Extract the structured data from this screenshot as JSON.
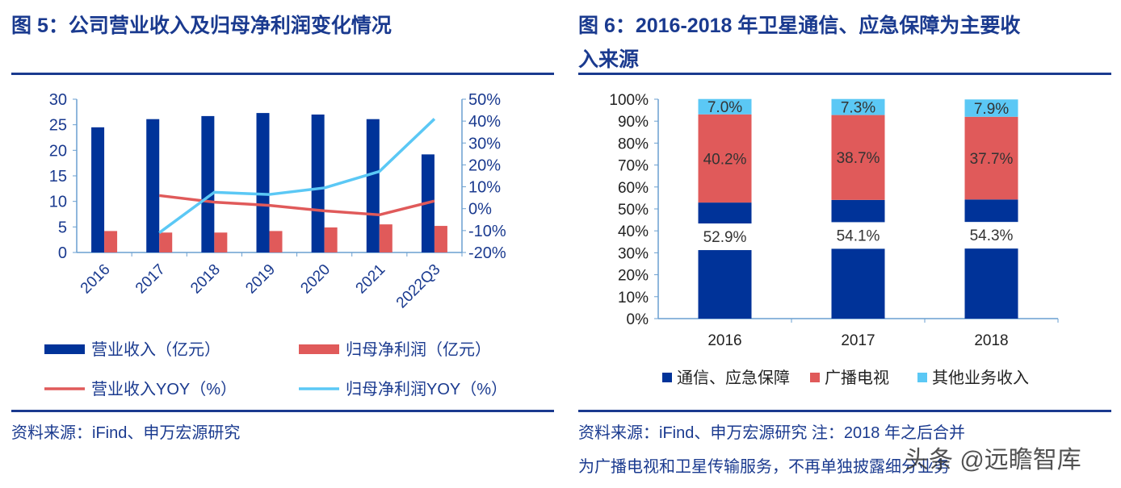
{
  "left": {
    "title": "图 5：公司营业收入及归母净利润变化情况",
    "source": "资料来源：iFind、申万宏源研究"
  },
  "right": {
    "title_line1": "图 6：2016-2018 年卫星通信、应急保障为主要收",
    "title_line2": "入来源",
    "source_line1": "资料来源：iFind、申万宏源研究  注：2018 年之后合并",
    "source_line2": "为广播电视和卫星传输服务，不再单独披露细分业务"
  },
  "watermark": "头条 @远瞻智库",
  "chart_data": [
    {
      "type": "bar+line",
      "categories": [
        "2016",
        "2017",
        "2018",
        "2019",
        "2020",
        "2021",
        "2022Q3"
      ],
      "y_left": {
        "range": [
          0,
          30
        ],
        "ticks": [
          "0",
          "5",
          "10",
          "15",
          "20",
          "25",
          "30"
        ]
      },
      "y_right": {
        "range": [
          -20,
          50
        ],
        "ticks": [
          "-20%",
          "-10%",
          "0%",
          "10%",
          "20%",
          "30%",
          "40%",
          "50%"
        ]
      },
      "series": [
        {
          "name": "营业收入（亿元）",
          "kind": "bar",
          "axis": "left",
          "color": "#003399",
          "values": [
            24.5,
            26.1,
            26.7,
            27.3,
            27.0,
            26.1,
            19.2
          ]
        },
        {
          "name": "归母净利润（亿元）",
          "kind": "bar",
          "axis": "left",
          "color": "#e05a5a",
          "values": [
            4.2,
            3.9,
            3.9,
            4.2,
            4.9,
            5.5,
            5.2
          ]
        },
        {
          "name": "营业收入YOY（%）",
          "kind": "line",
          "axis": "right",
          "color": "#e05a5a",
          "values": [
            null,
            6,
            3,
            1.5,
            -1,
            -2.8,
            3.5
          ]
        },
        {
          "name": "归母净利润YOY（%）",
          "kind": "line",
          "axis": "right",
          "color": "#5bc8f5",
          "values": [
            null,
            -11,
            7.5,
            6.5,
            9.5,
            17,
            41
          ]
        }
      ],
      "legend": "bottom",
      "grid": false
    },
    {
      "type": "stacked-bar-100",
      "categories": [
        "2016",
        "2017",
        "2018"
      ],
      "y": {
        "range": [
          0,
          100
        ],
        "ticks": [
          "0%",
          "10%",
          "20%",
          "30%",
          "40%",
          "50%",
          "60%",
          "70%",
          "80%",
          "90%",
          "100%"
        ]
      },
      "series": [
        {
          "name": "通信、应急保障",
          "color": "#003399",
          "values": [
            52.9,
            54.1,
            54.3
          ],
          "labels": [
            "52.9%",
            "54.1%",
            "54.3%"
          ]
        },
        {
          "name": "广播电视",
          "color": "#e05a5a",
          "values": [
            40.2,
            38.7,
            37.7
          ],
          "labels": [
            "40.2%",
            "38.7%",
            "37.7%"
          ]
        },
        {
          "name": "其他业务收入",
          "color": "#5bc8f5",
          "values": [
            7.0,
            7.3,
            7.9
          ],
          "labels": [
            "7.0%",
            "7.3%",
            "7.9%"
          ]
        }
      ],
      "legend": "bottom",
      "grid": false
    }
  ]
}
